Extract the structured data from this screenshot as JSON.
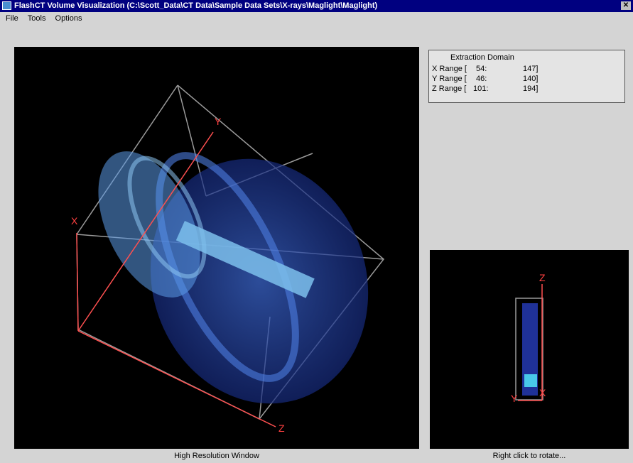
{
  "window": {
    "title": "FlashCT Volume Visualization (C:\\Scott_Data\\CT Data\\Sample Data Sets\\X-rays\\Maglight\\Maglight)"
  },
  "menu": [
    "File",
    "Tools",
    "Options"
  ],
  "extraction_domain": {
    "title": "Extraction Domain",
    "rows": [
      [
        "X Range [",
        "54:",
        "147]"
      ],
      [
        "Y Range [",
        "46:",
        "140]"
      ],
      [
        "Z Range [",
        "101:",
        "194]"
      ]
    ]
  },
  "main_view": {
    "axis_labels": {
      "y": "Y",
      "x": "X",
      "z": "Z"
    },
    "caption": "High Resolution Window"
  },
  "preview_view": {
    "axis_labels": {
      "z": "Z",
      "y": "Y",
      "x": "X"
    },
    "caption": "Right click to rotate..."
  }
}
